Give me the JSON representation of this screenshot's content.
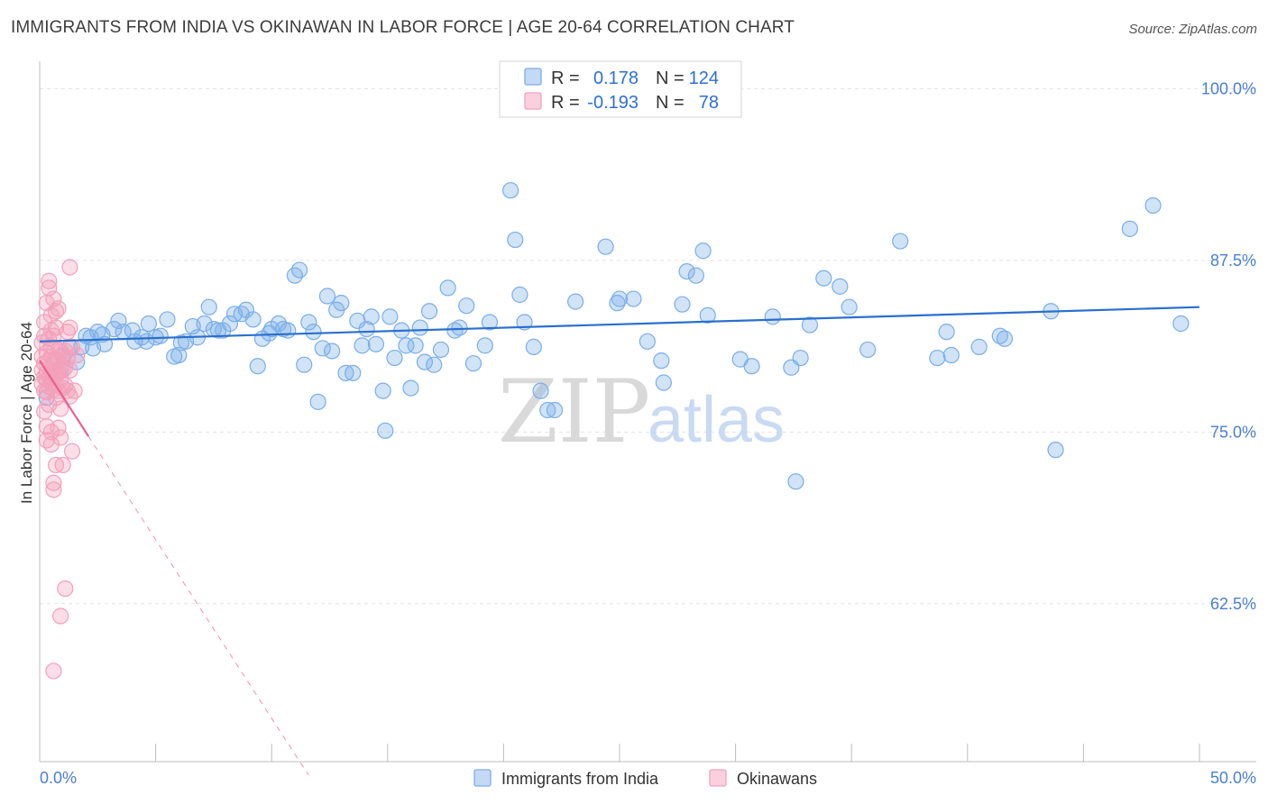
{
  "header": {
    "title": "IMMIGRANTS FROM INDIA VS OKINAWAN IN LABOR FORCE | AGE 20-64 CORRELATION CHART",
    "source": "Source: ZipAtlas.com"
  },
  "watermark": {
    "zip": "ZIP",
    "atlas": "atlas"
  },
  "legend": {
    "rows": [
      {
        "r_label": "R =",
        "r_value": "0.178",
        "n_label": "N =",
        "n_value": "124",
        "color": "#7aaee8"
      },
      {
        "r_label": "R =",
        "r_value": "-0.193",
        "n_label": "N =",
        "n_value": "78",
        "color": "#f3a0bb"
      }
    ]
  },
  "bottom_legend": [
    {
      "label": "Immigrants from India",
      "color": "#7aaee8"
    },
    {
      "label": "Okinawans",
      "color": "#f3a0bb"
    }
  ],
  "chart_data": {
    "type": "scatter",
    "title": "IMMIGRANTS FROM INDIA VS OKINAWAN IN LABOR FORCE | AGE 20-64 CORRELATION CHART",
    "ylabel": "In Labor Force | Age 20-64",
    "xlim": [
      0,
      50
    ],
    "ylim": [
      51,
      102
    ],
    "x_tick_labels": [
      {
        "value": 0,
        "label": "0.0%"
      },
      {
        "value": 50,
        "label": "50.0%"
      }
    ],
    "y_tick_labels": [
      {
        "value": 100,
        "label": "100.0%"
      },
      {
        "value": 87.5,
        "label": "87.5%"
      },
      {
        "value": 75,
        "label": "75.0%"
      },
      {
        "value": 62.5,
        "label": "62.5%"
      }
    ],
    "grid": true,
    "colors": {
      "india": "#7aaee8",
      "india_line": "#2a6fcf",
      "okinawa": "#f3a0bb",
      "okinawa_line": "#e8608e"
    },
    "series": [
      {
        "name": "Immigrants from India",
        "trend": {
          "x0": 0,
          "y0": 81.6,
          "x1": 50,
          "y1": 84.1
        },
        "points": [
          [
            0.3,
            77.5
          ],
          [
            0.9,
            79.5
          ],
          [
            1.3,
            81.2
          ],
          [
            1.6,
            80.1
          ],
          [
            1.8,
            81.2
          ],
          [
            2.0,
            82.0
          ],
          [
            2.3,
            81.1
          ],
          [
            2.5,
            82.3
          ],
          [
            2.7,
            82.1
          ],
          [
            2.8,
            81.4
          ],
          [
            3.2,
            82.5
          ],
          [
            3.4,
            83.1
          ],
          [
            3.6,
            82.3
          ],
          [
            4.0,
            82.4
          ],
          [
            4.1,
            81.6
          ],
          [
            4.4,
            81.9
          ],
          [
            4.6,
            81.6
          ],
          [
            4.7,
            82.9
          ],
          [
            5.0,
            81.9
          ],
          [
            5.2,
            82.0
          ],
          [
            5.5,
            83.2
          ],
          [
            5.8,
            80.5
          ],
          [
            6.0,
            80.6
          ],
          [
            6.3,
            81.6
          ],
          [
            6.6,
            82.7
          ],
          [
            6.8,
            81.9
          ],
          [
            7.1,
            82.9
          ],
          [
            7.3,
            84.1
          ],
          [
            7.5,
            82.5
          ],
          [
            7.7,
            82.4
          ],
          [
            7.9,
            82.4
          ],
          [
            8.2,
            82.9
          ],
          [
            8.4,
            83.6
          ],
          [
            8.7,
            83.6
          ],
          [
            8.9,
            83.9
          ],
          [
            9.2,
            83.2
          ],
          [
            9.4,
            79.8
          ],
          [
            9.6,
            81.8
          ],
          [
            9.9,
            82.2
          ],
          [
            10.0,
            82.5
          ],
          [
            10.3,
            82.9
          ],
          [
            10.5,
            82.5
          ],
          [
            10.7,
            82.4
          ],
          [
            11.0,
            86.4
          ],
          [
            11.2,
            86.8
          ],
          [
            11.4,
            79.9
          ],
          [
            11.6,
            83.0
          ],
          [
            11.8,
            82.3
          ],
          [
            12.0,
            77.2
          ],
          [
            12.4,
            84.9
          ],
          [
            12.6,
            80.9
          ],
          [
            12.8,
            83.9
          ],
          [
            13.0,
            84.4
          ],
          [
            13.2,
            79.3
          ],
          [
            13.5,
            79.3
          ],
          [
            13.7,
            83.1
          ],
          [
            13.9,
            81.3
          ],
          [
            14.1,
            82.5
          ],
          [
            14.3,
            83.4
          ],
          [
            14.5,
            81.4
          ],
          [
            14.8,
            78.0
          ],
          [
            14.9,
            75.1
          ],
          [
            15.1,
            83.4
          ],
          [
            15.3,
            80.4
          ],
          [
            15.6,
            82.4
          ],
          [
            15.8,
            81.3
          ],
          [
            16.0,
            78.2
          ],
          [
            16.2,
            81.3
          ],
          [
            16.4,
            82.6
          ],
          [
            16.6,
            80.1
          ],
          [
            16.8,
            83.8
          ],
          [
            17.0,
            79.9
          ],
          [
            17.3,
            81.0
          ],
          [
            17.6,
            85.5
          ],
          [
            17.9,
            82.4
          ],
          [
            18.1,
            82.6
          ],
          [
            18.4,
            84.2
          ],
          [
            18.7,
            80.0
          ],
          [
            19.2,
            81.3
          ],
          [
            19.4,
            83.0
          ],
          [
            20.3,
            92.6
          ],
          [
            20.5,
            89.0
          ],
          [
            20.7,
            85.0
          ],
          [
            20.9,
            83.0
          ],
          [
            21.3,
            81.2
          ],
          [
            21.6,
            78.0
          ],
          [
            21.9,
            76.6
          ],
          [
            22.2,
            76.6
          ],
          [
            23.1,
            84.5
          ],
          [
            24.4,
            88.5
          ],
          [
            24.9,
            84.4
          ],
          [
            25.0,
            84.7
          ],
          [
            25.6,
            84.7
          ],
          [
            26.8,
            80.2
          ],
          [
            26.9,
            78.6
          ],
          [
            27.7,
            84.3
          ],
          [
            27.9,
            86.7
          ],
          [
            28.3,
            86.4
          ],
          [
            28.6,
            88.2
          ],
          [
            28.8,
            83.5
          ],
          [
            30.2,
            80.3
          ],
          [
            30.7,
            79.8
          ],
          [
            31.6,
            83.4
          ],
          [
            32.4,
            79.7
          ],
          [
            32.6,
            71.4
          ],
          [
            32.8,
            80.4
          ],
          [
            33.2,
            82.8
          ],
          [
            33.8,
            86.2
          ],
          [
            34.5,
            85.6
          ],
          [
            34.9,
            84.1
          ],
          [
            35.7,
            81.0
          ],
          [
            37.1,
            88.9
          ],
          [
            38.7,
            80.4
          ],
          [
            39.1,
            82.3
          ],
          [
            39.3,
            80.6
          ],
          [
            40.5,
            81.2
          ],
          [
            41.4,
            82.0
          ],
          [
            41.6,
            81.8
          ],
          [
            43.6,
            83.8
          ],
          [
            43.8,
            73.7
          ],
          [
            47.0,
            89.8
          ],
          [
            48.0,
            91.5
          ],
          [
            49.2,
            82.9
          ],
          [
            1.0,
            80.5
          ],
          [
            2.2,
            81.9
          ],
          [
            6.1,
            81.5
          ],
          [
            12.2,
            81.1
          ],
          [
            26.2,
            81.6
          ]
        ]
      },
      {
        "name": "Okinawans",
        "trend": {
          "x0": 0,
          "y0": 80.2,
          "x1": 2.1,
          "y1": 74.7,
          "dash_to_x": 11.6,
          "dash_to_y": 50.0
        },
        "points": [
          [
            0.1,
            80.5
          ],
          [
            0.1,
            79.5
          ],
          [
            0.1,
            78.5
          ],
          [
            0.1,
            81.5
          ],
          [
            0.2,
            80.0
          ],
          [
            0.2,
            79.0
          ],
          [
            0.2,
            78.0
          ],
          [
            0.2,
            82.0
          ],
          [
            0.2,
            83.0
          ],
          [
            0.3,
            80.8
          ],
          [
            0.3,
            79.3
          ],
          [
            0.3,
            77.9
          ],
          [
            0.3,
            84.4
          ],
          [
            0.3,
            75.4
          ],
          [
            0.3,
            74.4
          ],
          [
            0.4,
            80.2
          ],
          [
            0.4,
            79.1
          ],
          [
            0.4,
            78.3
          ],
          [
            0.4,
            81.8
          ],
          [
            0.4,
            85.5
          ],
          [
            0.4,
            86.0
          ],
          [
            0.5,
            80.5
          ],
          [
            0.5,
            79.4
          ],
          [
            0.5,
            78.6
          ],
          [
            0.5,
            82.4
          ],
          [
            0.5,
            83.5
          ],
          [
            0.5,
            75.0
          ],
          [
            0.5,
            74.1
          ],
          [
            0.6,
            80.0
          ],
          [
            0.6,
            79.0
          ],
          [
            0.6,
            78.1
          ],
          [
            0.6,
            82.0
          ],
          [
            0.6,
            84.7
          ],
          [
            0.6,
            71.3
          ],
          [
            0.6,
            70.8
          ],
          [
            0.6,
            57.6
          ],
          [
            0.7,
            80.3
          ],
          [
            0.7,
            79.2
          ],
          [
            0.7,
            78.4
          ],
          [
            0.7,
            83.8
          ],
          [
            0.7,
            82.6
          ],
          [
            0.7,
            72.6
          ],
          [
            0.8,
            80.1
          ],
          [
            0.8,
            79.3
          ],
          [
            0.8,
            78.0
          ],
          [
            0.8,
            84.0
          ],
          [
            0.8,
            75.3
          ],
          [
            0.9,
            79.8
          ],
          [
            0.9,
            78.8
          ],
          [
            0.9,
            76.7
          ],
          [
            0.9,
            74.6
          ],
          [
            0.9,
            61.6
          ],
          [
            1.0,
            80.6
          ],
          [
            1.0,
            79.5
          ],
          [
            1.0,
            78.2
          ],
          [
            1.0,
            72.6
          ],
          [
            1.1,
            79.7
          ],
          [
            1.1,
            78.4
          ],
          [
            1.1,
            63.6
          ],
          [
            1.2,
            80.4
          ],
          [
            1.2,
            78.0
          ],
          [
            1.2,
            82.3
          ],
          [
            1.3,
            79.5
          ],
          [
            1.3,
            82.6
          ],
          [
            1.3,
            77.6
          ],
          [
            1.3,
            87.0
          ],
          [
            1.4,
            81.2
          ],
          [
            1.4,
            73.6
          ],
          [
            1.5,
            78.0
          ],
          [
            1.6,
            80.6
          ],
          [
            0.2,
            76.5
          ],
          [
            0.4,
            77.0
          ],
          [
            0.5,
            81.2
          ],
          [
            0.8,
            81.0
          ],
          [
            0.3,
            78.8
          ],
          [
            0.7,
            77.5
          ],
          [
            0.9,
            80.9
          ],
          [
            1.1,
            80.9
          ]
        ]
      }
    ]
  }
}
